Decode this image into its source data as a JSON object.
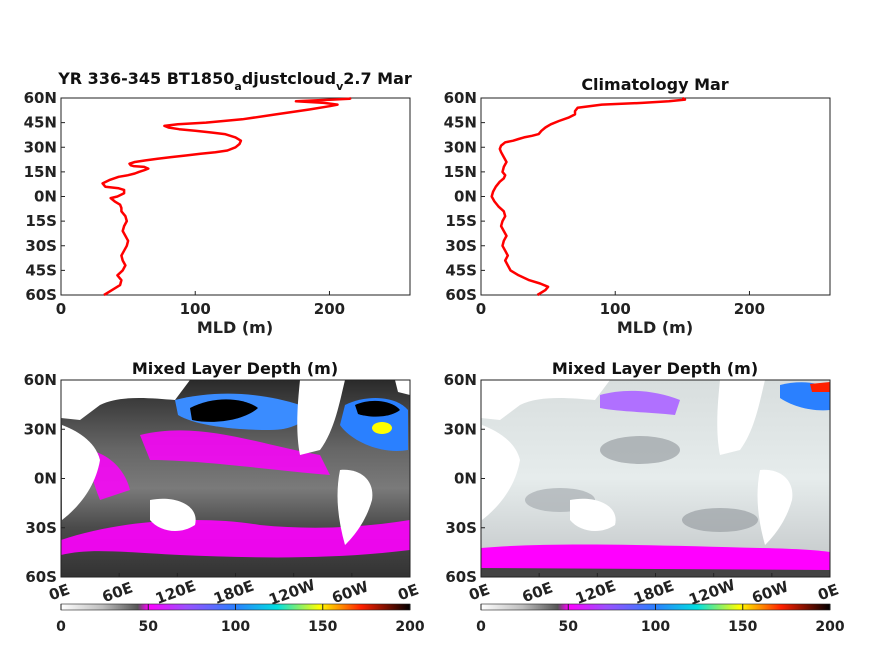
{
  "chart_data": [
    {
      "type": "line",
      "title": "YR 336-345 BT1850",
      "title_sub1": "a",
      "title_mid": "djustcloud",
      "title_sub2": "v",
      "title_tail": "2.7 Mar",
      "xlabel": "MLD (m)",
      "ylabel": "",
      "xlim": [
        0,
        260
      ],
      "ylim": [
        -60,
        60
      ],
      "x_ticks": [
        "0",
        "100",
        "200"
      ],
      "x_tick_values": [
        0,
        100,
        200
      ],
      "y_ticks": [
        "60N",
        "45N",
        "30N",
        "15N",
        "0N",
        "15S",
        "30S",
        "45S",
        "60S"
      ],
      "y_tick_values": [
        60,
        45,
        30,
        15,
        0,
        -15,
        -30,
        -45,
        -60
      ],
      "color": "#ff0000",
      "series": [
        {
          "x": [
            32,
            38,
            44,
            45,
            42,
            46,
            48,
            46,
            45,
            47,
            49,
            50,
            48,
            46,
            47,
            49,
            48,
            45,
            45,
            44,
            40,
            37,
            42,
            47,
            47,
            43,
            33,
            31,
            36,
            43,
            50,
            55,
            58,
            62,
            65,
            62,
            54,
            52,
            51,
            55,
            63,
            72,
            82,
            93,
            104,
            115,
            124,
            130,
            133,
            134,
            130,
            122,
            112,
            100,
            88,
            80,
            77,
            87,
            108,
            135,
            160,
            185,
            200,
            206,
            196,
            175,
            202,
            215,
            216
          ],
          "y": [
            -60,
            -57,
            -54,
            -51,
            -48,
            -45,
            -42,
            -39,
            -36,
            -33,
            -30,
            -27,
            -24,
            -21,
            -18,
            -15,
            -12,
            -9,
            -7,
            -5,
            -3,
            -1,
            0,
            2,
            4,
            5,
            6,
            8,
            10,
            12,
            13,
            14,
            15,
            16,
            17,
            18,
            18.5,
            19,
            20,
            21,
            22,
            23,
            24,
            25,
            26,
            27,
            28,
            30,
            32,
            34,
            36,
            38,
            39,
            40,
            41,
            42,
            43,
            44,
            45,
            47,
            50,
            53,
            55,
            56,
            57,
            58,
            59,
            59.5,
            60
          ]
        }
      ]
    },
    {
      "type": "line",
      "title": "Climatology Mar",
      "xlabel": "MLD (m)",
      "ylabel": "",
      "xlim": [
        0,
        260
      ],
      "ylim": [
        -60,
        60
      ],
      "x_ticks": [
        "0",
        "100",
        "200"
      ],
      "x_tick_values": [
        0,
        100,
        200
      ],
      "y_ticks": [
        "60N",
        "45N",
        "30N",
        "15N",
        "0N",
        "15S",
        "30S",
        "45S",
        "60S"
      ],
      "y_tick_values": [
        60,
        45,
        30,
        15,
        0,
        -15,
        -30,
        -45,
        -60
      ],
      "color": "#ff0000",
      "series": [
        {
          "x": [
            42,
            48,
            50,
            44,
            36,
            28,
            22,
            20,
            18,
            20,
            18,
            16,
            17,
            19,
            17,
            15,
            16,
            18,
            17,
            13,
            10,
            8,
            9,
            11,
            14,
            17,
            18,
            16,
            17,
            19,
            17,
            15,
            14,
            15,
            18,
            24,
            28,
            32,
            38,
            43,
            45,
            48,
            52,
            58,
            65,
            70,
            70,
            72,
            90,
            120,
            140,
            152,
            150
          ],
          "y": [
            -60,
            -57,
            -55,
            -53,
            -51,
            -48,
            -45,
            -42,
            -39,
            -36,
            -33,
            -30,
            -27,
            -24,
            -21,
            -18,
            -15,
            -12,
            -9,
            -6,
            -3,
            0,
            3,
            6,
            9,
            11,
            13,
            15,
            18,
            21,
            24,
            27,
            29,
            31,
            33,
            34,
            35,
            36,
            37,
            38,
            40,
            42,
            44,
            46,
            48,
            50,
            52,
            54,
            56,
            57,
            58,
            59,
            60
          ]
        }
      ]
    },
    {
      "type": "heatmap",
      "title": "Mixed Layer Depth (m)",
      "xlabel": "",
      "ylabel": "",
      "xlim": [
        0,
        360
      ],
      "ylim": [
        -60,
        60
      ],
      "x_ticks": [
        "0E",
        "60E",
        "120E",
        "180E",
        "120W",
        "60W",
        "0E"
      ],
      "y_ticks": [
        "60N",
        "30N",
        "0N",
        "30S",
        "60S"
      ],
      "colorbar": {
        "min": 0,
        "max": 200,
        "ticks": [
          "0",
          "50",
          "100",
          "150",
          "200"
        ]
      },
      "colormap": [
        "#ffffff",
        "#c8c8c8",
        "#888888",
        "#444444",
        "#ff00ff",
        "#9a50ff",
        "#2a80ff",
        "#00e0e0",
        "#ffff00",
        "#ff0000",
        "#000000"
      ]
    },
    {
      "type": "heatmap",
      "title": "Mixed Layer Depth (m)",
      "xlabel": "",
      "ylabel": "",
      "xlim": [
        0,
        360
      ],
      "ylim": [
        -60,
        60
      ],
      "x_ticks": [
        "0E",
        "60E",
        "120E",
        "180E",
        "120W",
        "60W",
        "0E"
      ],
      "y_ticks": [
        "60N",
        "30N",
        "0N",
        "30S",
        "60S"
      ],
      "colorbar": {
        "min": 0,
        "max": 200,
        "ticks": [
          "0",
          "50",
          "100",
          "150",
          "200"
        ]
      },
      "colormap": [
        "#ffffff",
        "#c8c8c8",
        "#888888",
        "#444444",
        "#ff00ff",
        "#9a50ff",
        "#2a80ff",
        "#00e0e0",
        "#ffff00",
        "#ff0000",
        "#000000"
      ]
    }
  ]
}
